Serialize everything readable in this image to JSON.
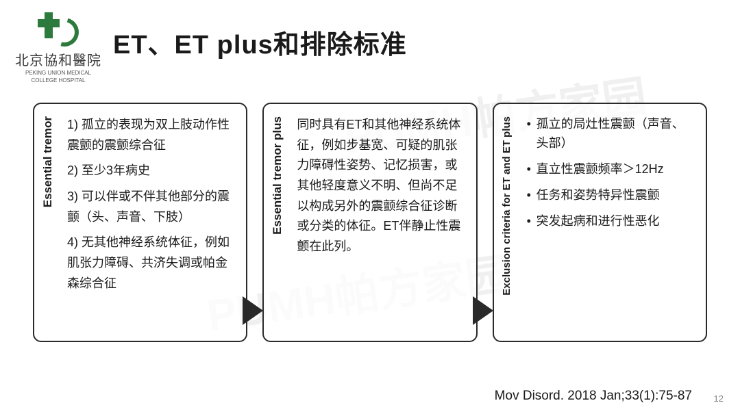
{
  "logo": {
    "name_cn": "北京協和醫院",
    "name_en_line1": "PEKING UNION MEDICAL",
    "name_en_line2": "COLLEGE HOSPITAL"
  },
  "title": "ET、ET plus和排除标准",
  "watermark": "PUMH帕方家园",
  "columns": [
    {
      "label": "Essential tremor",
      "items": [
        "1) 孤立的表现为双上肢动作性震颤的震颤综合征",
        "2) 至少3年病史",
        "3) 可以伴或不伴其他部分的震颤（头、声音、下肢）",
        "4) 无其他神经系统体征，例如肌张力障碍、共济失调或帕金森综合征"
      ],
      "has_arrow": true
    },
    {
      "label": "Essential tremor plus",
      "text": "同时具有ET和其他神经系统体征，例如步基宽、可疑的肌张力障碍性姿势、记忆损害，或其他轻度意义不明、但尚不足以构成另外的震颤综合征诊断或分类的体征。ET伴静止性震颤在此列。",
      "has_arrow": true
    },
    {
      "label": "Exclusion criteria for ET and ET plus",
      "bullets": [
        "孤立的局灶性震颤（声音、头部）",
        "直立性震颤频率＞12Hz",
        "任务和姿势特异性震颤",
        "突发起病和进行性恶化"
      ],
      "has_arrow": false
    }
  ],
  "citation": "Mov Disord. 2018 Jan;33(1):75-87",
  "page_number": "12",
  "colors": {
    "logo_green": "#2d7a3e",
    "text": "#1a1a1a",
    "border": "#2a2a2a",
    "watermark": "#f0f0f0",
    "background": "#ffffff"
  }
}
